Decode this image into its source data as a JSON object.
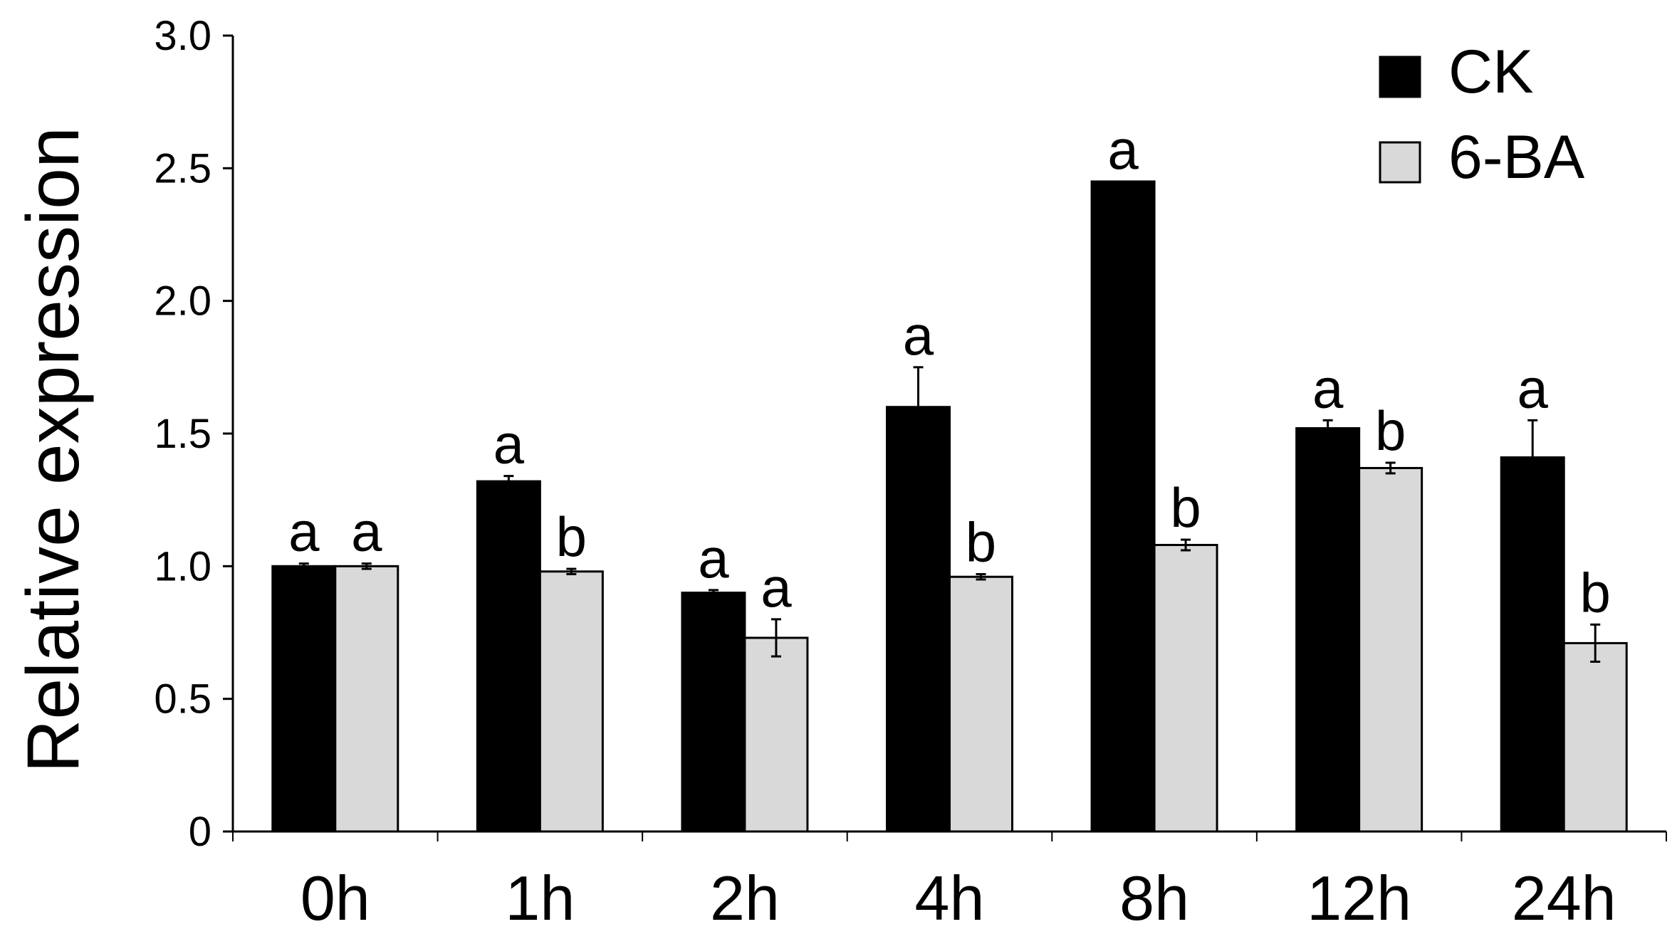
{
  "chart_data": {
    "type": "bar",
    "ylabel": "Relative expression",
    "xlabel": "",
    "ylim": [
      0,
      3.0
    ],
    "yticks": [
      "0",
      "0.5",
      "1.0",
      "1.5",
      "2.0",
      "2.5",
      "3.0"
    ],
    "categories": [
      "0h",
      "1h",
      "2h",
      "4h",
      "8h",
      "12h",
      "24h"
    ],
    "series": [
      {
        "name": "CK",
        "color": "#000000",
        "values": [
          1.0,
          1.32,
          0.9,
          1.6,
          2.45,
          1.52,
          1.41
        ],
        "errors": [
          0.01,
          0.02,
          0.01,
          0.15,
          0.0,
          0.03,
          0.14
        ],
        "letters": [
          "a",
          "a",
          "a",
          "a",
          "a",
          "a",
          "a"
        ]
      },
      {
        "name": "6-BA",
        "color": "#d9d9d9",
        "values": [
          1.0,
          0.98,
          0.73,
          0.96,
          1.08,
          1.37,
          0.71
        ],
        "errors": [
          0.01,
          0.01,
          0.07,
          0.01,
          0.02,
          0.02,
          0.07
        ],
        "letters": [
          "a",
          "b",
          "a",
          "b",
          "b",
          "b",
          "b"
        ]
      }
    ],
    "legend": {
      "position": "top-right"
    },
    "grid": false
  }
}
